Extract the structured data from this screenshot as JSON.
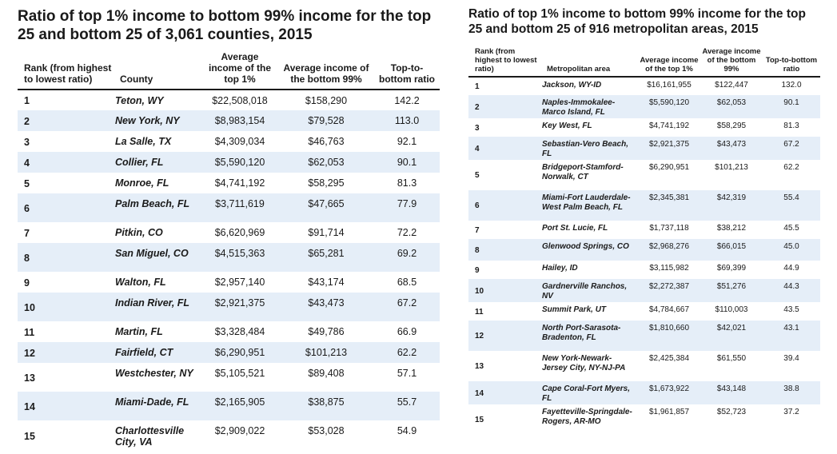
{
  "counties": {
    "title": "Ratio of top 1% income to bottom 99% income for the top 25 and bottom 25 of 3,061 counties, 2015",
    "headers": {
      "rank": "Rank (from highest to lowest ratio)",
      "name": "County",
      "top": "Average income of the top 1%",
      "bottom": "Average income of the bottom 99%",
      "ratio": "Top-to-bottom ratio"
    },
    "rows": [
      {
        "rank": "1",
        "name": "Teton, WY",
        "top": "$22,508,018",
        "bottom": "$158,290",
        "ratio": "142.2"
      },
      {
        "rank": "2",
        "name": "New York, NY",
        "top": "$8,983,154",
        "bottom": "$79,528",
        "ratio": "113.0"
      },
      {
        "rank": "3",
        "name": "La Salle, TX",
        "top": "$4,309,034",
        "bottom": "$46,763",
        "ratio": "92.1"
      },
      {
        "rank": "4",
        "name": "Collier, FL",
        "top": "$5,590,120",
        "bottom": "$62,053",
        "ratio": "90.1"
      },
      {
        "rank": "5",
        "name": "Monroe, FL",
        "top": "$4,741,192",
        "bottom": "$58,295",
        "ratio": "81.3"
      },
      {
        "rank": "6",
        "name": "Palm Beach, FL",
        "top": "$3,711,619",
        "bottom": "$47,665",
        "ratio": "77.9"
      },
      {
        "rank": "7",
        "name": "Pitkin, CO",
        "top": "$6,620,969",
        "bottom": "$91,714",
        "ratio": "72.2"
      },
      {
        "rank": "8",
        "name": "San Miguel, CO",
        "top": "$4,515,363",
        "bottom": "$65,281",
        "ratio": "69.2"
      },
      {
        "rank": "9",
        "name": "Walton, FL",
        "top": "$2,957,140",
        "bottom": "$43,174",
        "ratio": "68.5"
      },
      {
        "rank": "10",
        "name": "Indian River, FL",
        "top": "$2,921,375",
        "bottom": "$43,473",
        "ratio": "67.2"
      },
      {
        "rank": "11",
        "name": "Martin, FL",
        "top": "$3,328,484",
        "bottom": "$49,786",
        "ratio": "66.9"
      },
      {
        "rank": "12",
        "name": "Fairfield, CT",
        "top": "$6,290,951",
        "bottom": "$101,213",
        "ratio": "62.2"
      },
      {
        "rank": "13",
        "name": "Westchester, NY",
        "top": "$5,105,521",
        "bottom": "$89,408",
        "ratio": "57.1"
      },
      {
        "rank": "14",
        "name": "Miami-Dade, FL",
        "top": "$2,165,905",
        "bottom": "$38,875",
        "ratio": "55.7"
      },
      {
        "rank": "15",
        "name": "Charlottesville City, VA",
        "top": "$2,909,022",
        "bottom": "$53,028",
        "ratio": "54.9"
      }
    ]
  },
  "metros": {
    "title": "Ratio of top 1% income to bottom 99% income for the top 25 and bottom 25 of 916 metropolitan areas, 2015",
    "headers": {
      "rank": "Rank (from highest to lowest ratio)",
      "name": "Metropolitan area",
      "top": "Average income of the top 1%",
      "bottom": "Average income of the bottom 99%",
      "ratio": "Top-to-bottom ratio"
    },
    "rows": [
      {
        "rank": "1",
        "name": "Jackson, WY-ID",
        "top": "$16,161,955",
        "bottom": "$122,447",
        "ratio": "132.0"
      },
      {
        "rank": "2",
        "name": "Naples-Immokalee-Marco Island, FL",
        "top": "$5,590,120",
        "bottom": "$62,053",
        "ratio": "90.1"
      },
      {
        "rank": "3",
        "name": "Key West, FL",
        "top": "$4,741,192",
        "bottom": "$58,295",
        "ratio": "81.3"
      },
      {
        "rank": "4",
        "name": "Sebastian-Vero Beach, FL",
        "top": "$2,921,375",
        "bottom": "$43,473",
        "ratio": "67.2"
      },
      {
        "rank": "5",
        "name": "Bridgeport-Stamford-Norwalk, CT",
        "top": "$6,290,951",
        "bottom": "$101,213",
        "ratio": "62.2"
      },
      {
        "rank": "6",
        "name": "Miami-Fort Lauderdale-West Palm Beach, FL",
        "top": "$2,345,381",
        "bottom": "$42,319",
        "ratio": "55.4"
      },
      {
        "rank": "7",
        "name": "Port St. Lucie, FL",
        "top": "$1,737,118",
        "bottom": "$38,212",
        "ratio": "45.5"
      },
      {
        "rank": "8",
        "name": "Glenwood Springs, CO",
        "top": "$2,968,276",
        "bottom": "$66,015",
        "ratio": "45.0"
      },
      {
        "rank": "9",
        "name": "Hailey, ID",
        "top": "$3,115,982",
        "bottom": "$69,399",
        "ratio": "44.9"
      },
      {
        "rank": "10",
        "name": "Gardnerville Ranchos, NV",
        "top": "$2,272,387",
        "bottom": "$51,276",
        "ratio": "44.3"
      },
      {
        "rank": "11",
        "name": "Summit Park, UT",
        "top": "$4,784,667",
        "bottom": "$110,003",
        "ratio": "43.5"
      },
      {
        "rank": "12",
        "name": "North Port-Sarasota-Bradenton, FL",
        "top": "$1,810,660",
        "bottom": "$42,021",
        "ratio": "43.1"
      },
      {
        "rank": "13",
        "name": "New York-Newark-Jersey City, NY-NJ-PA",
        "top": "$2,425,384",
        "bottom": "$61,550",
        "ratio": "39.4"
      },
      {
        "rank": "14",
        "name": "Cape Coral-Fort Myers, FL",
        "top": "$1,673,922",
        "bottom": "$43,148",
        "ratio": "38.8"
      },
      {
        "rank": "15",
        "name": "Fayetteville-Springdale-Rogers, AR-MO",
        "top": "$1,961,857",
        "bottom": "$52,723",
        "ratio": "37.2"
      }
    ]
  }
}
